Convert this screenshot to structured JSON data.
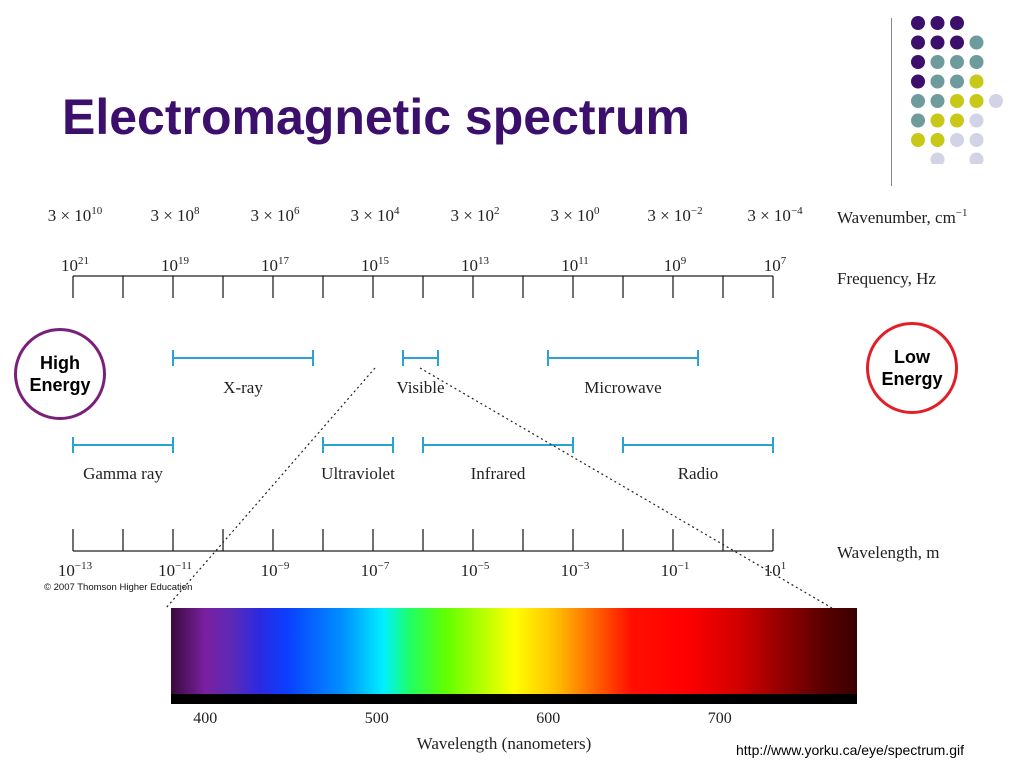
{
  "slide": {
    "title": "Electromagnetic spectrum",
    "copyright": "© 2007 Thomson Higher Education",
    "source_url": "http://www.yorku.ca/eye/spectrum.gif",
    "high_energy": [
      "High",
      "Energy"
    ],
    "low_energy": [
      "Low",
      "Energy"
    ]
  },
  "colors": {
    "title": "#3b0f6b",
    "band_line": "#29a3d6",
    "high_energy_ring": "#7a1f7a",
    "low_energy_ring": "#e21f26",
    "dot_purple": "#3b0f6b",
    "dot_teal": "#6e9c9c",
    "dot_yellow": "#c8c818",
    "dot_lavender": "#d3d3e6"
  },
  "diagram": {
    "wavenumber": {
      "label": "Wavenumber, cm",
      "label_exp": "−1",
      "ticks": [
        {
          "mantissa": "3 × 10",
          "exp": "10"
        },
        {
          "mantissa": "3 × 10",
          "exp": "8"
        },
        {
          "mantissa": "3 × 10",
          "exp": "6"
        },
        {
          "mantissa": "3 × 10",
          "exp": "4"
        },
        {
          "mantissa": "3 × 10",
          "exp": "2"
        },
        {
          "mantissa": "3 × 10",
          "exp": "0"
        },
        {
          "mantissa": "3 × 10",
          "exp": "−2"
        },
        {
          "mantissa": "3 × 10",
          "exp": "−4"
        }
      ]
    },
    "frequency": {
      "label": "Frequency, Hz",
      "ticks": [
        {
          "base": "10",
          "exp": "21"
        },
        {
          "base": "10",
          "exp": "19"
        },
        {
          "base": "10",
          "exp": "17"
        },
        {
          "base": "10",
          "exp": "15"
        },
        {
          "base": "10",
          "exp": "13"
        },
        {
          "base": "10",
          "exp": "11"
        },
        {
          "base": "10",
          "exp": "9"
        },
        {
          "base": "10",
          "exp": "7"
        }
      ]
    },
    "wavelength": {
      "label": "Wavelength, m",
      "ticks": [
        {
          "base": "10",
          "exp": "−13"
        },
        {
          "base": "10",
          "exp": "−11"
        },
        {
          "base": "10",
          "exp": "−9"
        },
        {
          "base": "10",
          "exp": "−7"
        },
        {
          "base": "10",
          "exp": "−5"
        },
        {
          "base": "10",
          "exp": "−3"
        },
        {
          "base": "10",
          "exp": "−1"
        },
        {
          "base": "10",
          "exp": "1"
        }
      ]
    },
    "bands": [
      {
        "name": "X-ray",
        "row": 0,
        "from_exp": -11.0,
        "to_exp": -8.2
      },
      {
        "name": "Visible",
        "row": 0,
        "from_exp": -6.4,
        "to_exp": -5.7
      },
      {
        "name": "Microwave",
        "row": 0,
        "from_exp": -3.5,
        "to_exp": -0.5
      },
      {
        "name": "Gamma ray",
        "row": 1,
        "from_exp": -13.0,
        "to_exp": -11.0
      },
      {
        "name": "Ultraviolet",
        "row": 1,
        "from_exp": -8.0,
        "to_exp": -6.6
      },
      {
        "name": "Infrared",
        "row": 1,
        "from_exp": -6.0,
        "to_exp": -3.0
      },
      {
        "name": "Radio",
        "row": 1,
        "from_exp": -2.0,
        "to_exp": 1.0
      }
    ],
    "visible_spectrum": {
      "axis_label": "Wavelength (nanometers)",
      "min_nm": 380,
      "max_nm": 780,
      "ticks": [
        400,
        500,
        600,
        700
      ]
    }
  }
}
